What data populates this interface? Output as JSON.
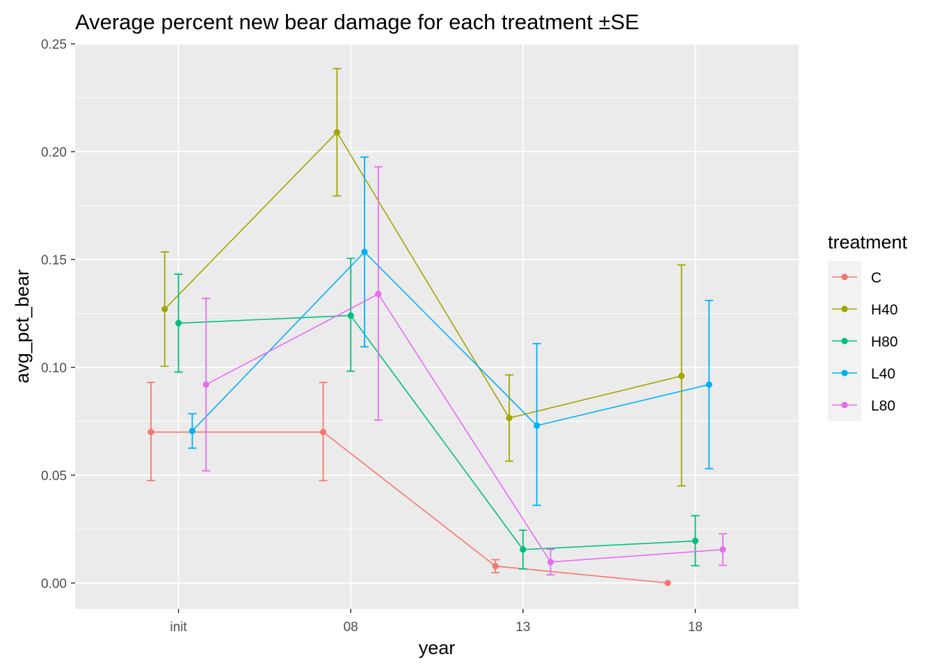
{
  "chart_data": {
    "type": "line",
    "title": "Average percent new bear damage for each treatment ±SE",
    "xlabel": "year",
    "ylabel": "avg_pct_bear",
    "categories": [
      "init",
      "08",
      "13",
      "18"
    ],
    "ylim": [
      -0.012,
      0.25
    ],
    "yticks": [
      "0.00",
      "0.05",
      "0.10",
      "0.15",
      "0.20",
      "0.25"
    ],
    "ytick_values": [
      0,
      0.05,
      0.1,
      0.15,
      0.2,
      0.25
    ],
    "grid": true,
    "legend_position": "right",
    "legend_title": "treatment",
    "dodge_width": 0.4,
    "series": [
      {
        "name": "C",
        "color": "#F8766D",
        "values": [
          0.07,
          0.07,
          0.0078,
          0.0
        ],
        "lower": [
          0.0475,
          0.0475,
          0.0048,
          0.0
        ],
        "upper": [
          0.093,
          0.093,
          0.0108,
          0.0
        ]
      },
      {
        "name": "H40",
        "color": "#A3A500",
        "values": [
          0.127,
          0.209,
          0.0765,
          0.096
        ],
        "lower": [
          0.1005,
          0.1795,
          0.0565,
          0.045
        ],
        "upper": [
          0.1535,
          0.2385,
          0.0965,
          0.1475
        ]
      },
      {
        "name": "H80",
        "color": "#00BF7D",
        "values": [
          0.1205,
          0.124,
          0.0155,
          0.0195
        ],
        "lower": [
          0.0978,
          0.0982,
          0.0065,
          0.008
        ],
        "upper": [
          0.1432,
          0.1505,
          0.0245,
          0.0312
        ]
      },
      {
        "name": "L40",
        "color": "#00B0F6",
        "values": [
          0.0705,
          0.1535,
          0.073,
          0.092
        ],
        "lower": [
          0.0625,
          0.1095,
          0.036,
          0.053
        ],
        "upper": [
          0.0785,
          0.1975,
          0.111,
          0.131
        ]
      },
      {
        "name": "L80",
        "color": "#E76BF3",
        "values": [
          0.092,
          0.134,
          0.0097,
          0.0155
        ],
        "lower": [
          0.052,
          0.0755,
          0.0038,
          0.0082
        ],
        "upper": [
          0.132,
          0.193,
          0.0156,
          0.0228
        ]
      }
    ]
  }
}
